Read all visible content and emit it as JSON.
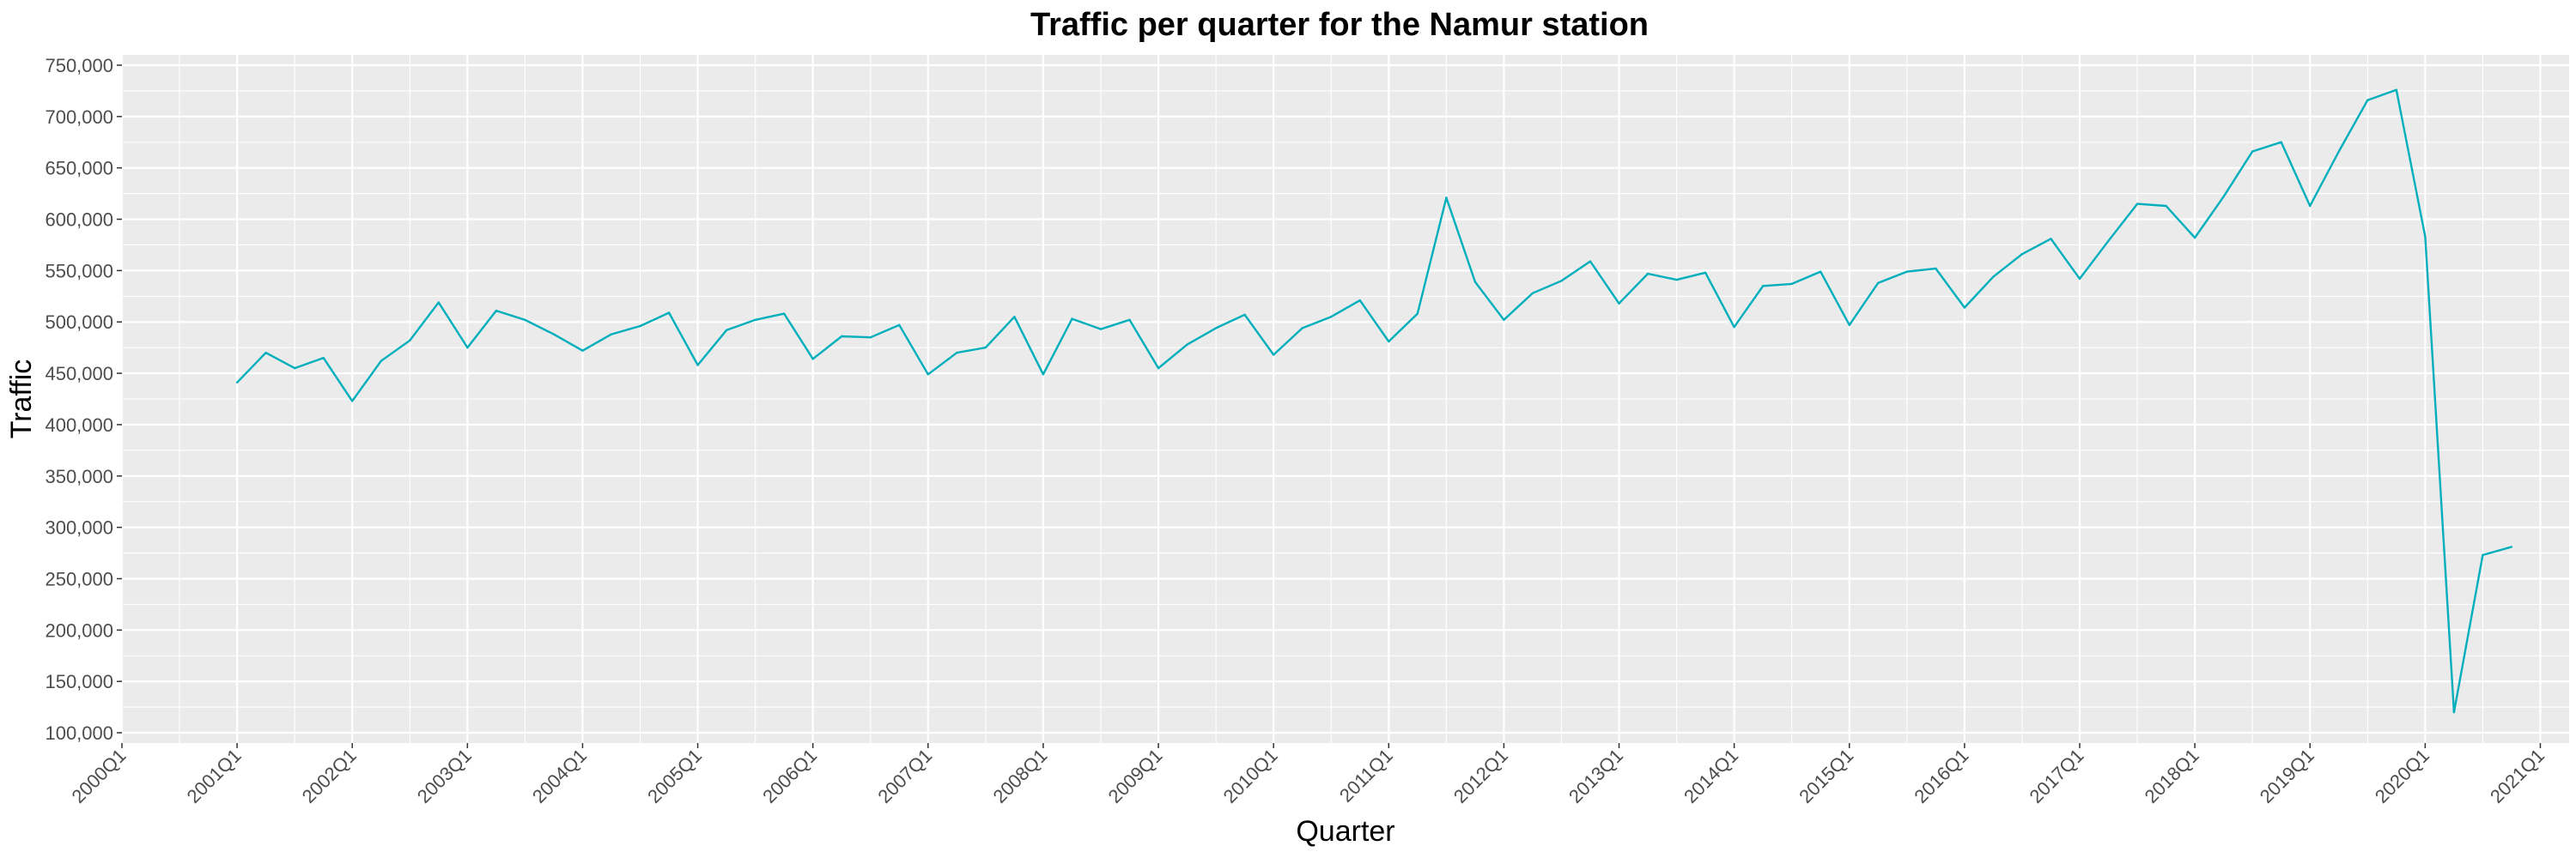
{
  "chart_data": {
    "type": "line",
    "title": "Traffic per quarter for the Namur station",
    "xlabel": "Quarter",
    "ylabel": "Traffic",
    "x_ticks": [
      "2000Q1",
      "2001Q1",
      "2002Q1",
      "2003Q1",
      "2004Q1",
      "2005Q1",
      "2006Q1",
      "2007Q1",
      "2008Q1",
      "2009Q1",
      "2010Q1",
      "2011Q1",
      "2012Q1",
      "2013Q1",
      "2014Q1",
      "2015Q1",
      "2016Q1",
      "2017Q1",
      "2018Q1",
      "2019Q1",
      "2020Q1",
      "2021Q1"
    ],
    "y_ticks": [
      "100,000",
      "150,000",
      "200,000",
      "250,000",
      "300,000",
      "350,000",
      "400,000",
      "450,000",
      "500,000",
      "550,000",
      "600,000",
      "650,000",
      "700,000",
      "750,000"
    ],
    "xlim": [
      2000.0,
      2021.25
    ],
    "ylim": [
      90000,
      760000
    ],
    "grid": true,
    "line_color": "#00AFBB",
    "series": [
      {
        "x": [
          "2001Q1",
          "2001Q2",
          "2001Q3",
          "2001Q4",
          "2002Q1",
          "2002Q2",
          "2002Q3",
          "2002Q4",
          "2003Q1",
          "2003Q2",
          "2003Q3",
          "2003Q4",
          "2004Q1",
          "2004Q2",
          "2004Q3",
          "2004Q4",
          "2005Q1",
          "2005Q2",
          "2005Q3",
          "2005Q4",
          "2006Q1",
          "2006Q2",
          "2006Q3",
          "2006Q4",
          "2007Q1",
          "2007Q2",
          "2007Q3",
          "2007Q4",
          "2008Q1",
          "2008Q2",
          "2008Q3",
          "2008Q4",
          "2009Q1",
          "2009Q2",
          "2009Q3",
          "2009Q4",
          "2010Q1",
          "2010Q2",
          "2010Q3",
          "2010Q4",
          "2011Q1",
          "2011Q2",
          "2011Q3",
          "2011Q4",
          "2012Q1",
          "2012Q2",
          "2012Q3",
          "2012Q4",
          "2013Q1",
          "2013Q2",
          "2013Q3",
          "2013Q4",
          "2014Q1",
          "2014Q2",
          "2014Q3",
          "2014Q4",
          "2015Q1",
          "2015Q2",
          "2015Q3",
          "2015Q4",
          "2016Q1",
          "2016Q2",
          "2016Q3",
          "2016Q4",
          "2017Q1",
          "2017Q2",
          "2017Q3",
          "2017Q4",
          "2018Q1",
          "2018Q2",
          "2018Q3",
          "2018Q4",
          "2019Q1",
          "2019Q2",
          "2019Q3",
          "2019Q4",
          "2020Q1",
          "2020Q2",
          "2020Q3",
          "2020Q4"
        ],
        "values": [
          441000,
          470000,
          455000,
          465000,
          423000,
          462000,
          482000,
          519000,
          475000,
          511000,
          502000,
          488000,
          472000,
          488000,
          496000,
          509000,
          458000,
          492000,
          502000,
          508000,
          464000,
          486000,
          485000,
          497000,
          449000,
          470000,
          475000,
          505000,
          449000,
          503000,
          493000,
          502000,
          455000,
          478000,
          494000,
          507000,
          468000,
          494000,
          505000,
          521000,
          481000,
          508000,
          621000,
          539000,
          502000,
          528000,
          540000,
          559000,
          518000,
          547000,
          541000,
          548000,
          495000,
          535000,
          537000,
          549000,
          497000,
          538000,
          549000,
          552000,
          514000,
          544000,
          566000,
          581000,
          542000,
          579000,
          615000,
          613000,
          582000,
          622000,
          666000,
          675000,
          613000,
          666000,
          716000,
          726000,
          583000,
          120000,
          273000,
          281000
        ]
      }
    ]
  }
}
